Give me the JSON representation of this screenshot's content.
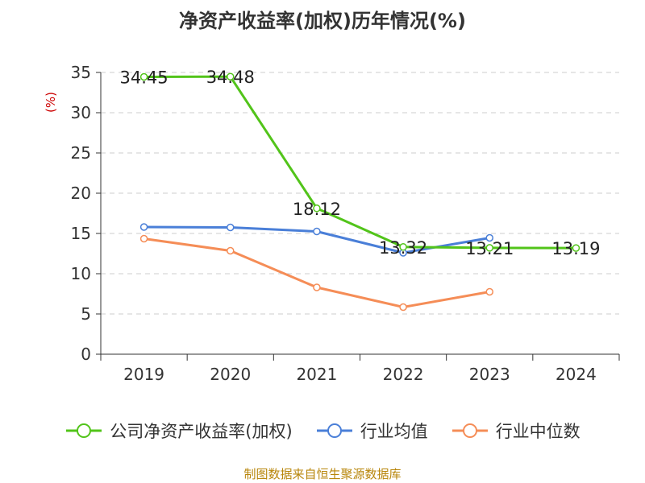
{
  "chart_data": {
    "type": "line",
    "title": "净资产收益率(加权)历年情况(%)",
    "ylabel": "(%)",
    "xlabel": "",
    "categories": [
      "2019",
      "2020",
      "2021",
      "2022",
      "2023",
      "2024"
    ],
    "ylim": [
      0,
      35
    ],
    "yticks": [
      0,
      5,
      10,
      15,
      20,
      25,
      30,
      35
    ],
    "grid": true,
    "legend_position": "bottom",
    "series": [
      {
        "name": "公司净资产收益率(加权)",
        "color": "#52c41a",
        "values": [
          34.45,
          34.48,
          18.12,
          13.32,
          13.21,
          13.19
        ],
        "labels": [
          "34.45",
          "34.48",
          "18.12",
          "13.32",
          "13.21",
          "13.19"
        ]
      },
      {
        "name": "行业均值",
        "color": "#4a7fd8",
        "values": [
          15.8,
          15.75,
          15.25,
          12.6,
          14.45,
          null
        ]
      },
      {
        "name": "行业中位数",
        "color": "#f58d57",
        "values": [
          14.35,
          12.85,
          8.3,
          5.85,
          7.75,
          null
        ]
      }
    ]
  },
  "source": "制图数据来自恒生聚源数据库"
}
